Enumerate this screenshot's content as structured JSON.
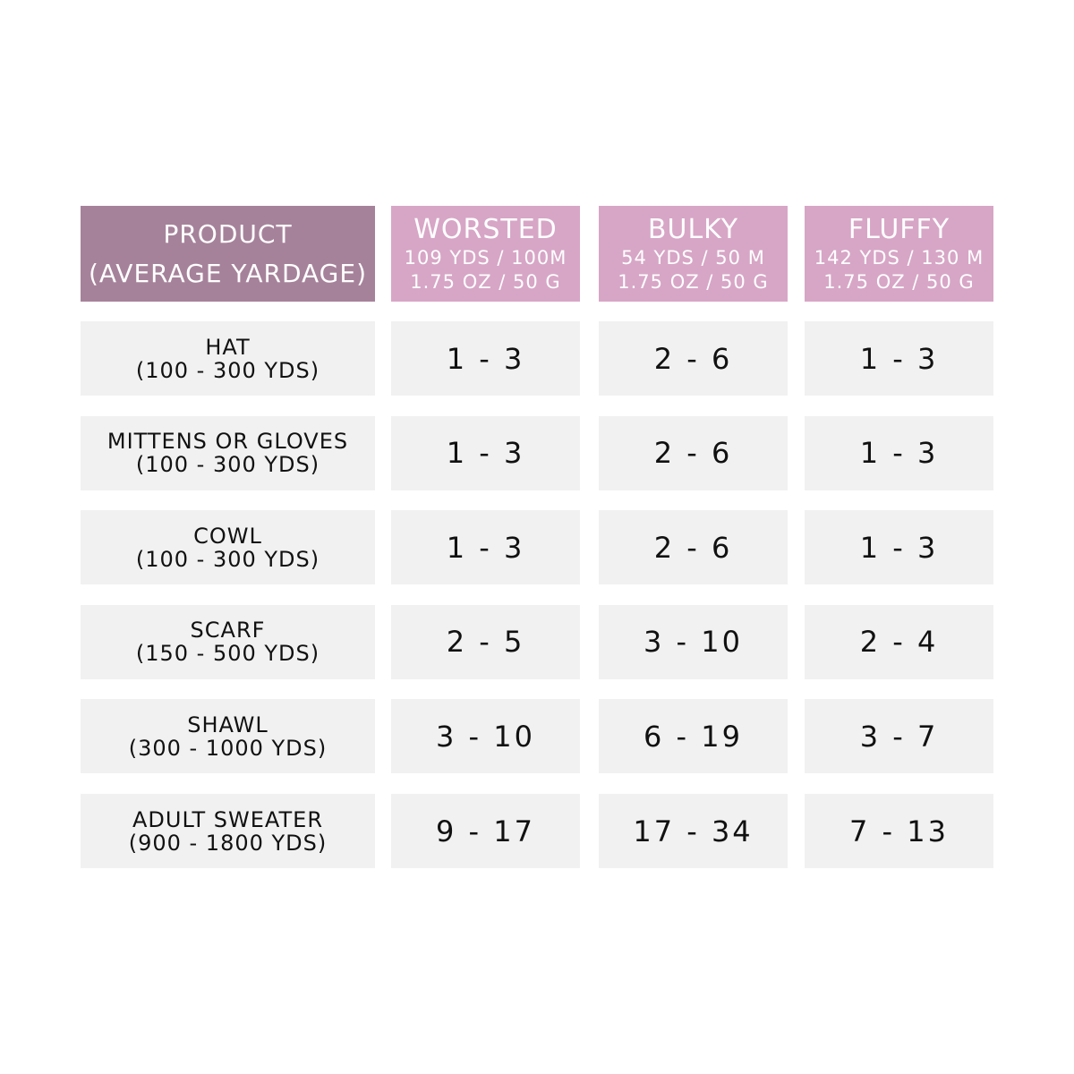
{
  "table": {
    "header": [
      {
        "lines": [
          "PRODUCT",
          "(AVERAGE YARDAGE)"
        ]
      },
      {
        "lines": [
          "WORSTED",
          "109 YDS / 100M",
          "1.75 OZ / 50 G"
        ]
      },
      {
        "lines": [
          "BULKY",
          "54 YDS / 50 M",
          "1.75 OZ / 50 G"
        ]
      },
      {
        "lines": [
          "FLUFFY",
          "142 YDS / 130 M",
          "1.75 OZ / 50 G"
        ]
      }
    ],
    "rows": [
      [
        [
          "HAT",
          "(100 - 300 YDS)"
        ],
        "1 - 3",
        "2 - 6",
        "1 - 3"
      ],
      [
        [
          "MITTENS OR GLOVES",
          "(100 - 300 YDS)"
        ],
        "1 - 3",
        "2 - 6",
        "1 - 3"
      ],
      [
        [
          "COWL",
          "(100 - 300 YDS)"
        ],
        "1 - 3",
        "2 - 6",
        "1 - 3"
      ],
      [
        [
          "SCARF",
          "(150 - 500 YDS)"
        ],
        "2 - 5",
        "3 - 10",
        "2 - 4"
      ],
      [
        [
          "SHAWL",
          "(300 - 1000 YDS)"
        ],
        "3 - 10",
        "6 - 19",
        "3 - 7"
      ],
      [
        [
          "ADULT SWEATER",
          "(900 - 1800 YDS)"
        ],
        "9 - 17",
        "17 - 34",
        "7 - 13"
      ]
    ]
  }
}
